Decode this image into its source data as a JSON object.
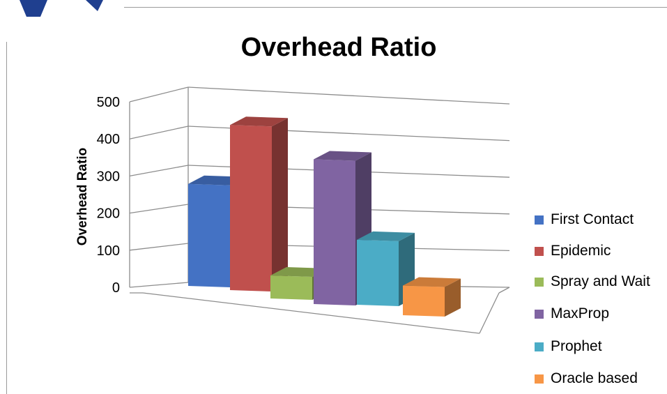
{
  "chart_data": {
    "type": "bar",
    "title": "Overhead Ratio",
    "xlabel": "",
    "ylabel": "Overhead Ratio",
    "ylim": [
      0,
      500
    ],
    "y_ticks": [
      "0",
      "100",
      "200",
      "300",
      "400",
      "500"
    ],
    "legend_position": "right",
    "grid": true,
    "series": [
      {
        "name": "First Contact",
        "values": [
          275
        ],
        "color": "#4472C4"
      },
      {
        "name": "Epidemic",
        "values": [
          445
        ],
        "color": "#C0504D"
      },
      {
        "name": "Spray and Wait",
        "values": [
          62
        ],
        "color": "#9BBB59"
      },
      {
        "name": "MaxProp",
        "values": [
          390
        ],
        "color": "#8064A2"
      },
      {
        "name": "Prophet",
        "values": [
          175
        ],
        "color": "#4BACC6"
      },
      {
        "name": "Oracle based",
        "values": [
          80
        ],
        "color": "#F79646"
      }
    ]
  }
}
